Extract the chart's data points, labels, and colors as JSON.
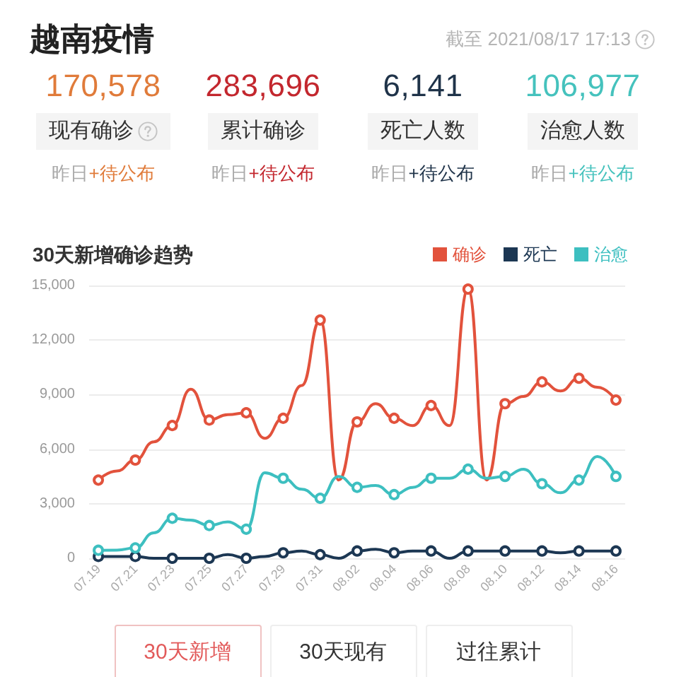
{
  "chart_data": [
    {
      "type": "other",
      "title": "越南疫情",
      "subtitle": "截至 2021/08/17 17:13",
      "annotations": [
        "170,578",
        "现有确诊",
        "昨日+待公布",
        "283,696",
        "累计确诊",
        "昨日+待公布",
        "6,141",
        "死亡人数",
        "昨日+待公布",
        "106,977",
        "治愈人数",
        "昨日+待公布"
      ]
    },
    {
      "type": "line",
      "title": "30天新增确诊趋势",
      "categories": [
        "07.19",
        null,
        "07.21",
        null,
        "07.23",
        null,
        "07.25",
        null,
        "07.27",
        null,
        "07.29",
        null,
        "07.31",
        null,
        "08.02",
        null,
        "08.04",
        null,
        "08.06",
        null,
        "08.08",
        null,
        "08.10",
        null,
        "08.12",
        null,
        "08.14",
        null,
        "08.16"
      ],
      "series": [
        {
          "name": "确诊",
          "color": "#e2523c",
          "values": [
            4300,
            4800,
            5400,
            6400,
            7300,
            9300,
            7600,
            7900,
            8000,
            6600,
            7700,
            9500,
            13100,
            4300,
            7500,
            8500,
            7700,
            7300,
            8400,
            7300,
            14800,
            4300,
            8500,
            8900,
            9700,
            9200,
            9900,
            9400,
            8700
          ]
        },
        {
          "name": "死亡",
          "color": "#1c3753",
          "values": [
            100,
            100,
            100,
            0,
            0,
            0,
            0,
            200,
            0,
            100,
            300,
            400,
            200,
            0,
            400,
            500,
            300,
            400,
            400,
            0,
            400,
            400,
            400,
            400,
            400,
            300,
            400,
            400,
            400
          ]
        },
        {
          "name": "治愈",
          "color": "#3dbfc0",
          "values": [
            440,
            450,
            570,
            1400,
            2200,
            2100,
            1800,
            2000,
            1600,
            4700,
            4400,
            3800,
            3300,
            4500,
            3900,
            4000,
            3500,
            3900,
            4400,
            4400,
            4900,
            4400,
            4500,
            4900,
            4100,
            3600,
            4300,
            5600,
            4500
          ]
        }
      ],
      "ylim": [
        0,
        15000
      ],
      "yticks": [
        0,
        {
          "value": 3000,
          "label": "3,000"
        },
        {
          "value": 6000,
          "label": "6,000"
        },
        {
          "value": 9000,
          "label": "9,000"
        },
        {
          "value": 12000,
          "label": "12,000"
        },
        {
          "value": 15000,
          "label": "15,000"
        }
      ],
      "grid": "y",
      "legend": "top right",
      "marker": "circle",
      "line_style": "solid",
      "annotations": [
        "30天新增",
        "30天现有",
        "过往累计"
      ]
    }
  ]
}
